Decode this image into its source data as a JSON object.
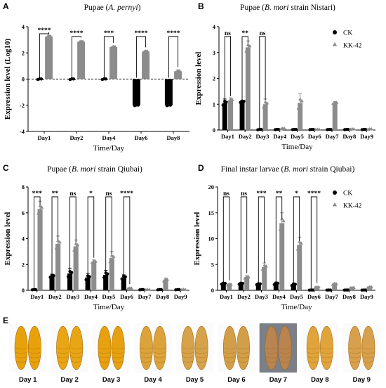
{
  "colors": {
    "ck": "#000000",
    "kk42": "#8c8c8c",
    "baseline": "#000000"
  },
  "chart_data": [
    {
      "panel": "A",
      "type": "bar",
      "title": "Pupae (A. pernyi)",
      "title_italic_part": "A. pernyi",
      "xlabel": "Time/Day",
      "ylabel": "Expression level (Log10)",
      "ylim": [
        -4,
        4
      ],
      "yticks": [
        -4,
        -2,
        0,
        2,
        4
      ],
      "categories": [
        "Day1",
        "Day2",
        "Day4",
        "Day6",
        "Day8"
      ],
      "baseline_dashed": true,
      "series": [
        {
          "key": "ck",
          "values": [
            0.0,
            0.0,
            0.0,
            -2.0,
            -2.0
          ],
          "err": [
            0.05,
            0.05,
            0.05,
            0.05,
            0.05
          ]
        },
        {
          "key": "kk42",
          "values": [
            3.25,
            2.85,
            2.45,
            2.1,
            0.6
          ],
          "err": [
            0.1,
            0.08,
            0.08,
            0.08,
            0.1
          ]
        }
      ],
      "significance": [
        "****",
        "****",
        "***",
        "****",
        "****"
      ]
    },
    {
      "panel": "B",
      "type": "bar",
      "title": "Pupae (B. mori strain Nistari)",
      "title_italic_part": "B. mori",
      "xlabel": "Time/Day",
      "ylabel": "Expression level",
      "ylim": [
        0,
        4
      ],
      "yticks": [
        0,
        1,
        2,
        3,
        4
      ],
      "categories": [
        "Day1",
        "Day2",
        "Day3",
        "Day4",
        "Day5",
        "Day6",
        "Day7",
        "Day8",
        "Day9"
      ],
      "series": [
        {
          "key": "ck",
          "name": "CK",
          "values": [
            1.05,
            1.1,
            0.02,
            0.02,
            0.02,
            0.02,
            0.02,
            0.02,
            0.02
          ],
          "err": [
            0.15,
            0.05,
            0.02,
            0.01,
            0.01,
            0.01,
            0.01,
            0.01,
            0.01
          ]
        },
        {
          "key": "kk42",
          "name": "KK-42",
          "values": [
            1.15,
            3.2,
            1.0,
            0.05,
            1.05,
            0.02,
            1.05,
            0.03,
            0.03
          ],
          "err": [
            0.1,
            0.25,
            0.2,
            0.03,
            0.35,
            0.01,
            0.05,
            0.02,
            0.02
          ]
        }
      ],
      "significance": [
        "ns",
        "**",
        "ns"
      ],
      "legend_position": "top-right"
    },
    {
      "panel": "C",
      "type": "bar",
      "title": "Pupae (B. mori strain Qiubai)",
      "title_italic_part": "B. mori",
      "xlabel": "Time/Day",
      "ylabel": "Expression level",
      "ylim": [
        0,
        8
      ],
      "yticks": [
        0,
        2,
        4,
        6,
        8
      ],
      "categories": [
        "Day1",
        "Day2",
        "Day3",
        "Day4",
        "Day5",
        "Day6",
        "Day7",
        "Day8",
        "Day9"
      ],
      "series": [
        {
          "key": "ck",
          "values": [
            0.05,
            1.1,
            1.3,
            1.0,
            1.2,
            1.0,
            0.05,
            0.05,
            0.05
          ],
          "err": [
            0.02,
            0.15,
            0.4,
            0.3,
            0.35,
            0.2,
            0.02,
            0.02,
            0.02
          ]
        },
        {
          "key": "kk42",
          "values": [
            6.3,
            3.6,
            3.4,
            2.2,
            2.5,
            0.15,
            0.05,
            0.8,
            0.05
          ],
          "err": [
            0.6,
            0.6,
            0.5,
            0.15,
            0.5,
            0.05,
            0.02,
            0.15,
            0.02
          ]
        }
      ],
      "significance": [
        "***",
        "**",
        "ns",
        "*",
        "ns",
        "****"
      ]
    },
    {
      "panel": "D",
      "type": "bar",
      "title": "Final instar larvae (B. mori strain Qiubai)",
      "title_italic_part": "B. mori",
      "xlabel": "Time/Day",
      "ylabel": "Expression level",
      "ylim": [
        0,
        20
      ],
      "yticks": [
        0,
        5,
        10,
        15,
        20
      ],
      "categories": [
        "Day1",
        "Day2",
        "Day3",
        "Day4",
        "Day5",
        "Day6",
        "Day7",
        "Day8",
        "Day9"
      ],
      "series": [
        {
          "key": "ck",
          "name": "CK",
          "values": [
            1.3,
            1.3,
            1.2,
            1.3,
            1.1,
            0.05,
            0.05,
            0.05,
            0.05
          ],
          "err": [
            0.2,
            0.2,
            0.2,
            0.3,
            0.3,
            0.02,
            0.02,
            0.02,
            0.02
          ]
        },
        {
          "key": "kk42",
          "name": "KK-42",
          "values": [
            1.1,
            2.5,
            4.5,
            13.0,
            8.8,
            0.6,
            1.2,
            0.5,
            0.6
          ],
          "err": [
            0.2,
            0.3,
            0.8,
            2.0,
            1.5,
            0.1,
            0.2,
            0.1,
            0.1
          ]
        }
      ],
      "significance": [
        "ns",
        "ns",
        "***",
        "**",
        "*",
        "****"
      ],
      "legend_position": "top-right"
    }
  ],
  "pupae_panel": {
    "letter": "E",
    "labels": [
      "Day 1",
      "Day 2",
      "Day 3",
      "Day 4",
      "Day 5",
      "Day 6",
      "Day 7",
      "Day 8",
      "Day 9"
    ],
    "colors": [
      "#e8a10a",
      "#e9a513",
      "#e7a10f",
      "#dca33a",
      "#d6a24a",
      "#d39e48",
      "#b98450",
      "#e0a43a",
      "#d8a04c"
    ]
  }
}
